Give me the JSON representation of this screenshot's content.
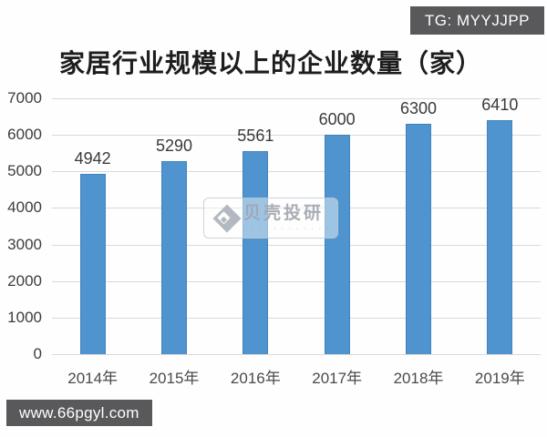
{
  "badges": {
    "tg": "TG: MYYJJPP",
    "website": "www.66pgyl.com"
  },
  "watermark": {
    "logo_icon": "diamond-shell-icon",
    "name": "贝壳投研",
    "subtext": "· · · · · · · · · · · ·"
  },
  "colors": {
    "bar": "#4f94ce",
    "bar_edge": "#4183bc",
    "gridline": "#d9d9d9",
    "badge_bg": "#59595b",
    "axis_text": "#3d3d3d"
  },
  "chart_data": {
    "type": "bar",
    "title": "家居行业规模以上的企业数量（家）",
    "categories": [
      "2014年",
      "2015年",
      "2016年",
      "2017年",
      "2018年",
      "2019年"
    ],
    "values": [
      4942,
      5290,
      5561,
      6000,
      6300,
      6410
    ],
    "xlabel": "",
    "ylabel": "",
    "ylim": [
      0,
      7000
    ],
    "ytick_step": 1000,
    "grid": "horizontal",
    "legend": "none",
    "bar_labels": true
  }
}
